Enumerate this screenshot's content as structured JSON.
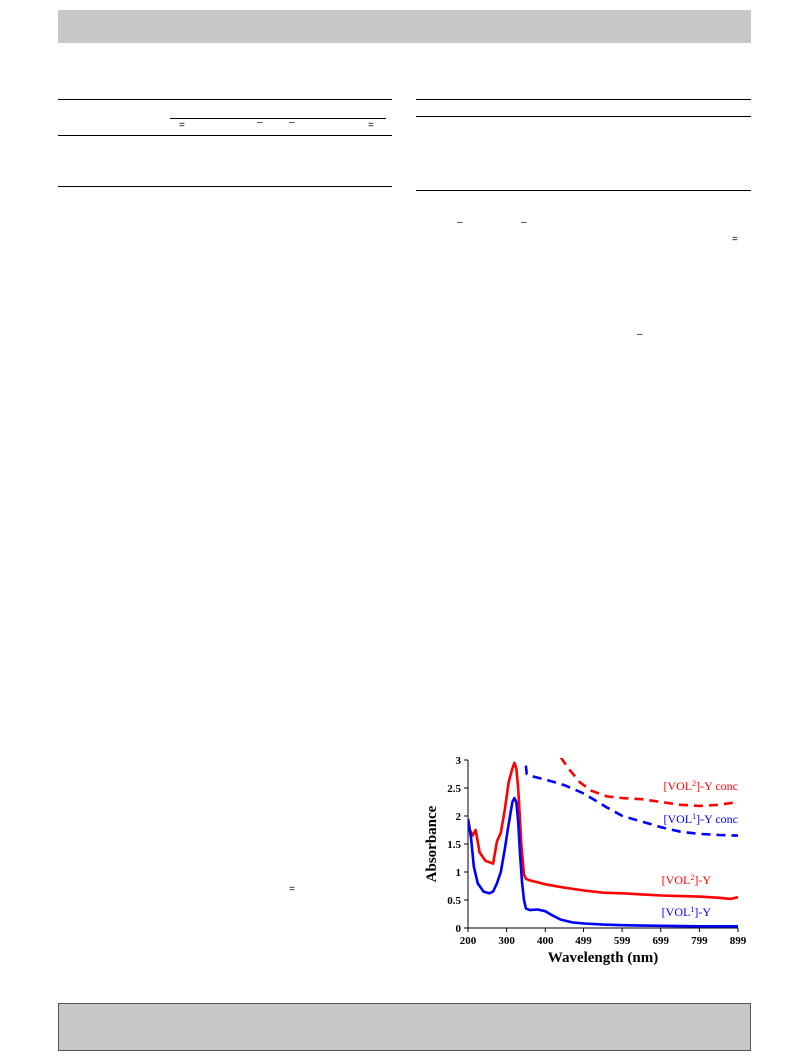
{
  "page": {
    "header_text": "",
    "footer_text": ""
  },
  "left_table": {
    "symbols": [
      "=",
      "–",
      "–",
      "="
    ]
  },
  "right_text": {
    "symbols": [
      "–",
      "–",
      "=",
      "–"
    ]
  },
  "left_body": {
    "symbols": [
      "="
    ]
  },
  "colors": {
    "red_series": "#ff0000",
    "blue_series": "#0000ff",
    "header_bar": "#c8c8c8"
  },
  "chart_data": {
    "type": "line",
    "title": "",
    "xlabel": "Wavelength (nm)",
    "ylabel": "Absorbance",
    "xlim": [
      200,
      899
    ],
    "ylim": [
      0,
      3
    ],
    "x_ticks": [
      "200",
      "300",
      "400",
      "499",
      "599",
      "699",
      "799",
      "899"
    ],
    "y_ticks": [
      "0",
      "0.5",
      "1",
      "1.5",
      "2",
      "2.5",
      "3"
    ],
    "grid": false,
    "series": [
      {
        "name": "[VOL2]-Y conc",
        "name_base": "[VOL",
        "name_sup": "2",
        "name_rest": "]-Y conc",
        "color": "#ff0000",
        "style": "dashed",
        "x": [
          440,
          460,
          490,
          520,
          560,
          600,
          650,
          700,
          750,
          800,
          850,
          899
        ],
        "y": [
          3.05,
          2.85,
          2.6,
          2.45,
          2.35,
          2.32,
          2.3,
          2.25,
          2.2,
          2.18,
          2.2,
          2.25
        ]
      },
      {
        "name": "[VOL1]-Y conc",
        "name_base": "[VOL",
        "name_sup": "1",
        "name_rest": "]-Y conc",
        "color": "#0000ff",
        "style": "dashed",
        "x": [
          350,
          352,
          360,
          400,
          450,
          500,
          560,
          600,
          650,
          700,
          750,
          800,
          850,
          899
        ],
        "y": [
          2.9,
          2.75,
          2.72,
          2.65,
          2.55,
          2.4,
          2.15,
          2.0,
          1.9,
          1.8,
          1.72,
          1.68,
          1.66,
          1.65
        ]
      },
      {
        "name": "[VOL2]-Y",
        "name_base": "[VOL",
        "name_sup": "2",
        "name_rest": "]-Y",
        "color": "#ff0000",
        "style": "solid",
        "x": [
          200,
          205,
          212,
          220,
          230,
          245,
          265,
          275,
          285,
          295,
          305,
          315,
          320,
          325,
          330,
          338,
          345,
          350,
          360,
          400,
          450,
          500,
          550,
          600,
          650,
          700,
          750,
          800,
          850,
          880,
          899
        ],
        "y": [
          1.95,
          1.75,
          1.65,
          1.75,
          1.35,
          1.2,
          1.15,
          1.55,
          1.7,
          2.1,
          2.6,
          2.85,
          2.95,
          2.85,
          2.5,
          1.5,
          0.95,
          0.88,
          0.85,
          0.78,
          0.72,
          0.67,
          0.63,
          0.62,
          0.6,
          0.58,
          0.57,
          0.56,
          0.54,
          0.52,
          0.55
        ]
      },
      {
        "name": "[VOL1]-Y",
        "name_base": "[VOL",
        "name_sup": "1",
        "name_rest": "]-Y",
        "color": "#0000ff",
        "style": "solid",
        "x": [
          200,
          208,
          215,
          225,
          240,
          255,
          265,
          275,
          285,
          295,
          305,
          315,
          320,
          325,
          330,
          335,
          340,
          345,
          350,
          360,
          380,
          400,
          420,
          440,
          470,
          500,
          550,
          600,
          700,
          800,
          899
        ],
        "y": [
          1.95,
          1.6,
          1.1,
          0.8,
          0.65,
          0.62,
          0.65,
          0.8,
          1.0,
          1.4,
          1.85,
          2.25,
          2.32,
          2.25,
          1.9,
          1.3,
          0.8,
          0.5,
          0.35,
          0.32,
          0.33,
          0.3,
          0.22,
          0.15,
          0.1,
          0.08,
          0.06,
          0.05,
          0.04,
          0.03,
          0.03
        ]
      }
    ]
  }
}
